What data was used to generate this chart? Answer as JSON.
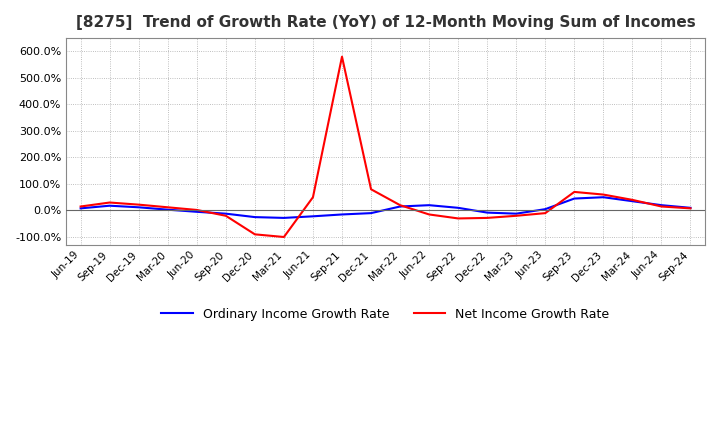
{
  "title": "[8275]  Trend of Growth Rate (YoY) of 12-Month Moving Sum of Incomes",
  "title_fontsize": 11,
  "ylim": [
    -130,
    650
  ],
  "yticks": [
    -100,
    0,
    100,
    200,
    300,
    400,
    500,
    600
  ],
  "ytick_labels": [
    "-100.0%",
    "0.0%",
    "100.0%",
    "200.0%",
    "300.0%",
    "400.0%",
    "500.0%",
    "600.0%"
  ],
  "x_labels": [
    "Jun-19",
    "Sep-19",
    "Dec-19",
    "Mar-20",
    "Jun-20",
    "Sep-20",
    "Dec-20",
    "Mar-21",
    "Jun-21",
    "Sep-21",
    "Dec-21",
    "Mar-22",
    "Jun-22",
    "Sep-22",
    "Dec-22",
    "Mar-23",
    "Jun-23",
    "Sep-23",
    "Dec-23",
    "Mar-24",
    "Jun-24",
    "Sep-24"
  ],
  "ordinary_income": [
    8,
    18,
    12,
    3,
    -5,
    -12,
    -25,
    -28,
    -22,
    -15,
    -10,
    15,
    20,
    10,
    -8,
    -12,
    5,
    45,
    50,
    35,
    20,
    10
  ],
  "net_income": [
    15,
    30,
    22,
    12,
    2,
    -20,
    -90,
    -100,
    50,
    580,
    80,
    20,
    -15,
    -30,
    -28,
    -20,
    -10,
    70,
    60,
    40,
    15,
    8
  ],
  "ordinary_color": "#0000ff",
  "net_color": "#ff0000",
  "line_width": 1.5,
  "background_color": "#ffffff",
  "grid_color": "#aaaaaa",
  "legend_ordinary": "Ordinary Income Growth Rate",
  "legend_net": "Net Income Growth Rate",
  "spine_color": "#888888"
}
